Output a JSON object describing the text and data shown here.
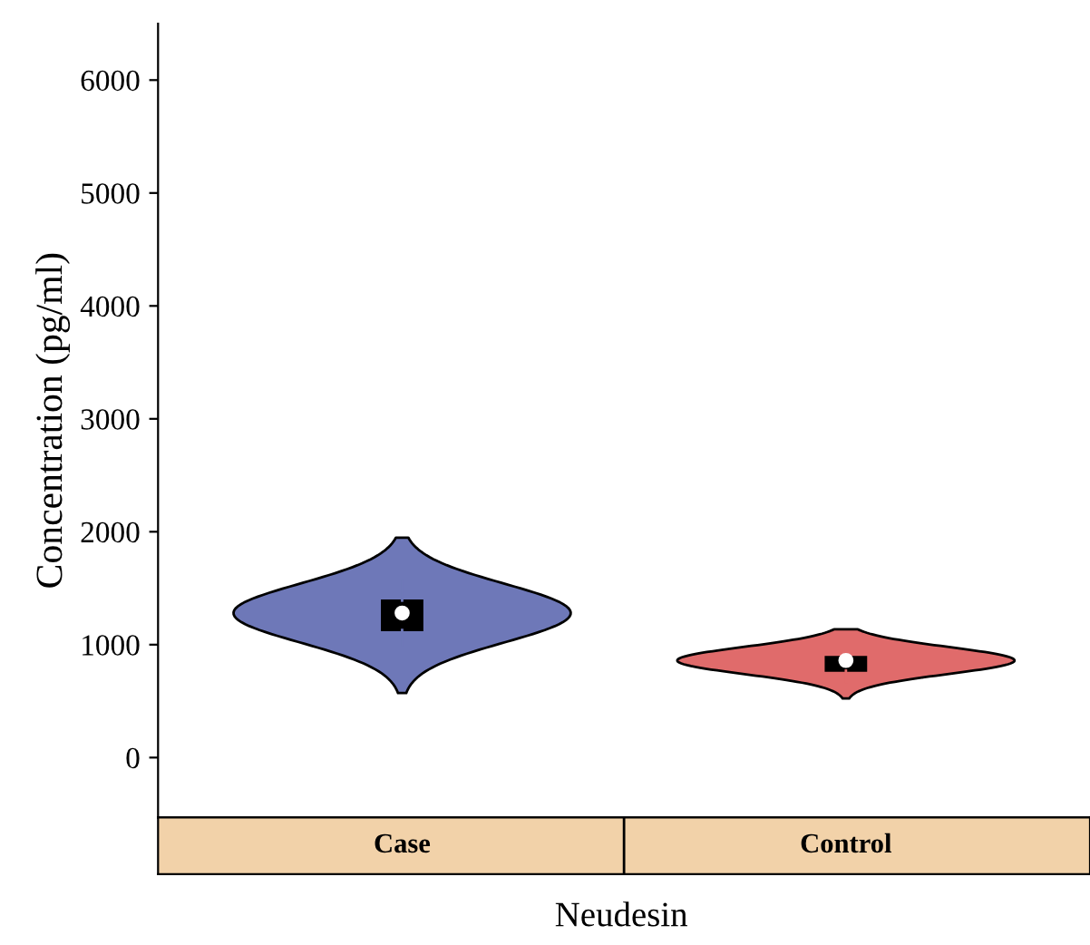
{
  "chart_data": {
    "type": "box",
    "xlabel": "Neudesin",
    "ylabel": "Concentration (pg/ml)",
    "categories": [
      "Case",
      "Control"
    ],
    "colors": [
      "#6e78b8",
      "#e06b6b"
    ],
    "series": [
      {
        "color": "#000000",
        "boxes": [
          {
            "low": 1000,
            "q1": 1130,
            "median": 1280,
            "q3": 1390,
            "high": 1560
          },
          {
            "low": 670,
            "q1": 770,
            "median": 860,
            "q3": 890,
            "high": 890
          }
        ]
      }
    ],
    "ylim": [
      -530,
      6500
    ],
    "yticks": [
      0,
      1000,
      2000,
      3000,
      4000,
      5000,
      6000
    ],
    "grid": false
  }
}
